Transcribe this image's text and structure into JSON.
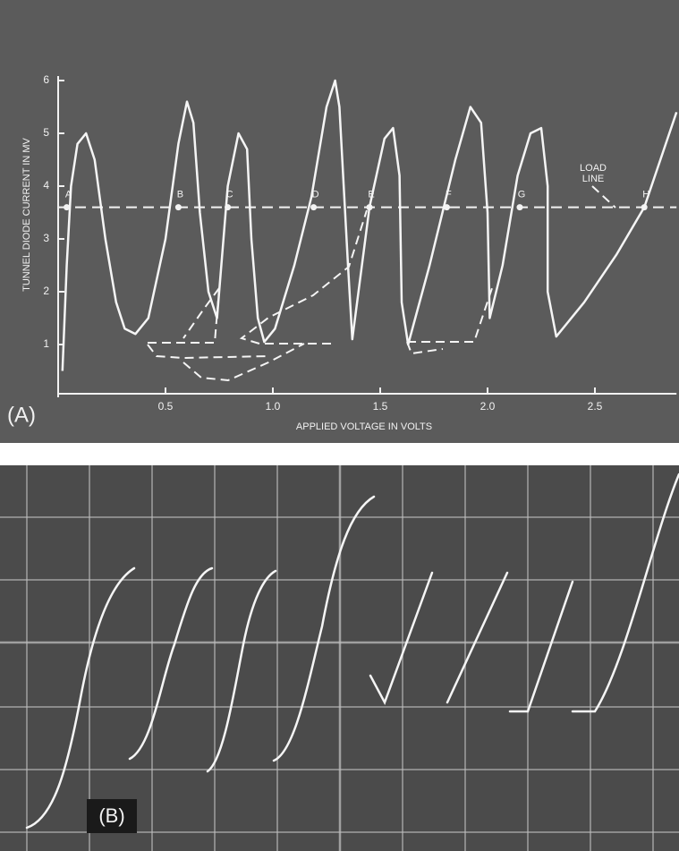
{
  "chart_data": {
    "type": "line",
    "panel_label": "(A)",
    "x_label": "APPLIED VOLTAGE IN VOLTS",
    "y_label": "TUNNEL DIODE CURRENT IN MV",
    "xlim": [
      0,
      2.88
    ],
    "ylim": [
      0,
      6
    ],
    "xticks": [
      0.5,
      {
        "value": 1,
        "label": "1.0"
      },
      1.5,
      {
        "value": 2,
        "label": "2.0"
      },
      2.5
    ],
    "yticks": [
      1,
      2,
      3,
      4,
      5,
      6
    ],
    "color": "#f5f5f5",
    "x": [
      0.02,
      0.04,
      0.06,
      0.09,
      0.13,
      0.17,
      0.22,
      0.27,
      0.31,
      0.36,
      0.42,
      0.5,
      0.56,
      0.6,
      0.63,
      0.66,
      0.7,
      0.74,
      0.79,
      0.84,
      0.88,
      0.9,
      0.93,
      0.96,
      1.01,
      1.1,
      1.18,
      1.25,
      1.29,
      1.31,
      1.33,
      1.35,
      1.37,
      1.45,
      1.52,
      1.56,
      1.59,
      1.6,
      1.63,
      1.73,
      1.85,
      1.92,
      1.97,
      2.0,
      2.01,
      2.07,
      2.14,
      2.2,
      2.25,
      2.28,
      2.28,
      2.32,
      2.45,
      2.6,
      2.73,
      2.88
    ],
    "values": [
      0.5,
      2.5,
      4.0,
      4.8,
      5.0,
      4.5,
      3.0,
      1.8,
      1.3,
      1.2,
      1.5,
      3.0,
      4.8,
      5.6,
      5.2,
      3.5,
      2.0,
      1.5,
      4.0,
      5.0,
      4.7,
      3.0,
      1.5,
      1.05,
      1.3,
      2.5,
      3.8,
      5.5,
      6.0,
      5.5,
      4.0,
      2.5,
      1.1,
      3.6,
      4.9,
      5.1,
      4.2,
      1.8,
      1.0,
      2.5,
      4.5,
      5.5,
      5.2,
      3.5,
      1.5,
      2.5,
      4.2,
      5.0,
      5.1,
      4.0,
      2.0,
      1.15,
      1.8,
      2.7,
      3.6,
      5.4
    ],
    "load_line": {
      "value": 3.6,
      "label": "LOAD LINE"
    },
    "points": [
      {
        "label": "A",
        "x": 0.04
      },
      {
        "label": "B",
        "x": 0.56
      },
      {
        "label": "C",
        "x": 0.79
      },
      {
        "label": "D",
        "x": 1.19
      },
      {
        "label": "E",
        "x": 1.45
      },
      {
        "label": "F",
        "x": 1.81
      },
      {
        "label": "G",
        "x": 2.15
      },
      {
        "label": "H",
        "x": 2.73
      }
    ]
  },
  "panel_b": {
    "label": "(B)"
  }
}
